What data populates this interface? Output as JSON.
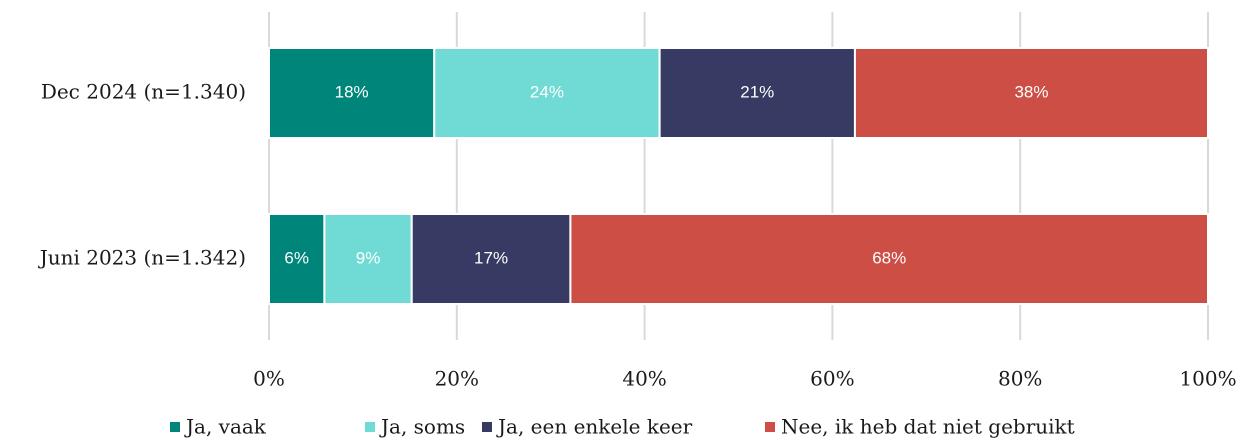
{
  "chart_data": {
    "type": "stacked-bar-horizontal",
    "categories": [
      "Dec 2024 (n=1.340)",
      "Juni 2023 (n=1.342)"
    ],
    "series": [
      {
        "name": "Ja, vaak",
        "color": "#00857a",
        "values": [
          17.6,
          5.9
        ],
        "value_labels": [
          "18%",
          "6%"
        ]
      },
      {
        "name": "Ja, soms",
        "color": "#6fdbd4",
        "values": [
          24.0,
          9.3
        ],
        "value_labels": [
          "24%",
          "9%"
        ]
      },
      {
        "name": "Ja, een enkele keer",
        "color": "#373a63",
        "values": [
          20.8,
          16.9
        ],
        "value_labels": [
          "21%",
          "17%"
        ]
      },
      {
        "name": "Nee, ik heb dat niet gebruikt",
        "color": "#cc4e44",
        "values": [
          37.6,
          67.9
        ],
        "value_labels": [
          "38%",
          "68%"
        ]
      }
    ],
    "xlim": [
      0,
      100
    ],
    "xticks": [
      {
        "value": 0,
        "label": "0%"
      },
      {
        "value": 20,
        "label": "20%"
      },
      {
        "value": 40,
        "label": "40%"
      },
      {
        "value": 60,
        "label": "60%"
      },
      {
        "value": 80,
        "label": "80%"
      },
      {
        "value": 100,
        "label": "100%"
      }
    ],
    "grid": true,
    "legend": "bottom"
  }
}
